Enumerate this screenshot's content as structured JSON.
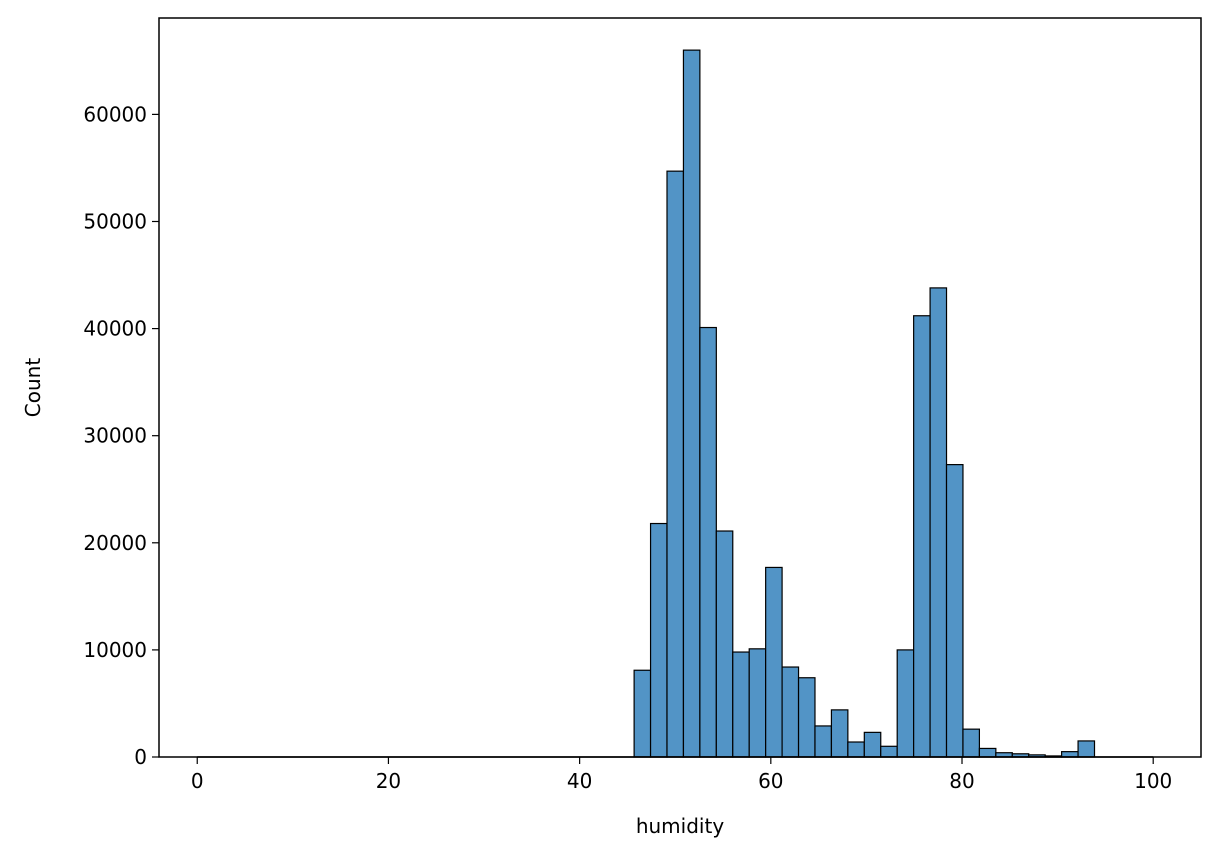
{
  "chart_data": {
    "type": "bar",
    "title": "",
    "xlabel": "humidity",
    "ylabel": "Count",
    "xlim": [
      -4,
      105
    ],
    "ylim": [
      0,
      69000
    ],
    "x_ticks": [
      0,
      20,
      40,
      60,
      80,
      100
    ],
    "y_ticks": [
      0,
      10000,
      20000,
      30000,
      40000,
      50000,
      60000
    ],
    "bin_width": 1.72,
    "grid": false,
    "legend": "none",
    "bar_color": "#5294c6",
    "bar_edge_color": "#000000",
    "bins": [
      {
        "x0": 45.7,
        "count": 8100
      },
      {
        "x0": 47.42,
        "count": 21800
      },
      {
        "x0": 49.14,
        "count": 54700
      },
      {
        "x0": 50.86,
        "count": 66000
      },
      {
        "x0": 52.58,
        "count": 40100
      },
      {
        "x0": 54.3,
        "count": 21100
      },
      {
        "x0": 56.02,
        "count": 9800
      },
      {
        "x0": 57.74,
        "count": 10100
      },
      {
        "x0": 59.46,
        "count": 17700
      },
      {
        "x0": 61.18,
        "count": 8400
      },
      {
        "x0": 62.9,
        "count": 7400
      },
      {
        "x0": 64.62,
        "count": 2900
      },
      {
        "x0": 66.34,
        "count": 4400
      },
      {
        "x0": 68.06,
        "count": 1400
      },
      {
        "x0": 69.78,
        "count": 2300
      },
      {
        "x0": 71.5,
        "count": 1000
      },
      {
        "x0": 73.22,
        "count": 10000
      },
      {
        "x0": 74.94,
        "count": 41200
      },
      {
        "x0": 76.66,
        "count": 43800
      },
      {
        "x0": 78.38,
        "count": 27300
      },
      {
        "x0": 80.1,
        "count": 2600
      },
      {
        "x0": 81.82,
        "count": 800
      },
      {
        "x0": 83.54,
        "count": 400
      },
      {
        "x0": 85.26,
        "count": 300
      },
      {
        "x0": 86.98,
        "count": 200
      },
      {
        "x0": 88.7,
        "count": 100
      },
      {
        "x0": 90.42,
        "count": 500
      },
      {
        "x0": 92.14,
        "count": 1500
      }
    ]
  }
}
